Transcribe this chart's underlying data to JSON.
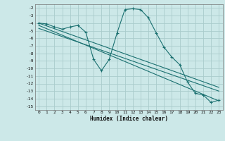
{
  "xlabel": "Humidex (Indice chaleur)",
  "xlim": [
    -0.5,
    23.5
  ],
  "ylim": [
    -15.5,
    -1.5
  ],
  "yticks": [
    -2,
    -3,
    -4,
    -5,
    -6,
    -7,
    -8,
    -9,
    -10,
    -11,
    -12,
    -13,
    -14,
    -15
  ],
  "xticks": [
    0,
    1,
    2,
    3,
    4,
    5,
    6,
    7,
    8,
    9,
    10,
    11,
    12,
    13,
    14,
    15,
    16,
    17,
    18,
    19,
    20,
    21,
    22,
    23
  ],
  "bg_color": "#cce8e8",
  "grid_color": "#aacccc",
  "line_color": "#1a7070",
  "main_x": [
    0,
    1,
    2,
    3,
    4,
    5,
    6,
    7,
    8,
    9,
    10,
    11,
    12,
    13,
    14,
    15,
    16,
    17,
    18,
    19,
    20,
    21,
    22,
    23
  ],
  "main_y": [
    -4.0,
    -4.1,
    -4.5,
    -4.8,
    -4.5,
    -4.3,
    -5.2,
    -8.8,
    -10.3,
    -8.8,
    -5.3,
    -2.2,
    -2.1,
    -2.2,
    -3.3,
    -5.3,
    -7.2,
    -8.5,
    -9.5,
    -11.8,
    -13.3,
    -13.5,
    -14.5,
    -14.2
  ],
  "trend1_x": [
    0,
    23
  ],
  "trend1_y": [
    -4.0,
    -12.5
  ],
  "trend2_x": [
    0,
    23
  ],
  "trend2_y": [
    -4.3,
    -14.3
  ],
  "trend3_x": [
    0,
    23
  ],
  "trend3_y": [
    -4.7,
    -13.0
  ]
}
